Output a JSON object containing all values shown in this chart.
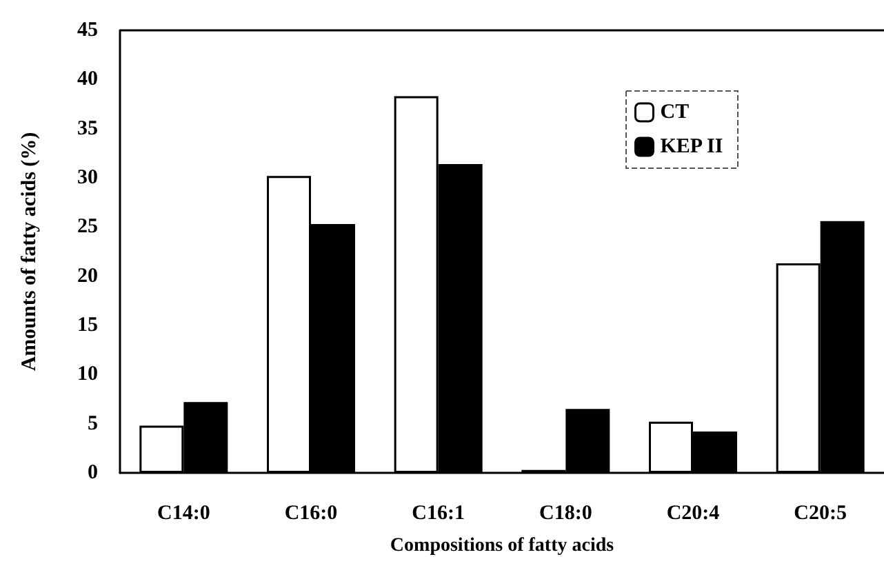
{
  "chart_data": {
    "type": "bar",
    "xlabel": "Compositions of fatty acids",
    "ylabel": "Amounts of fatty acids (%)",
    "categories": [
      "C14:0",
      "C16:0",
      "C16:1",
      "C18:0",
      "C20:4",
      "C20:5"
    ],
    "series": [
      {
        "name": "CT",
        "color": "#ffffff",
        "values": [
          4.8,
          30.2,
          38.3,
          0.3,
          5.2,
          21.3
        ]
      },
      {
        "name": "KEP II",
        "color": "#000000",
        "values": [
          7.2,
          25.3,
          31.4,
          6.5,
          4.2,
          25.6
        ]
      }
    ],
    "ylim": [
      0,
      45
    ],
    "yticks": [
      0,
      5,
      10,
      15,
      20,
      25,
      30,
      35,
      40,
      45
    ],
    "grid": false,
    "legend": "top right"
  }
}
